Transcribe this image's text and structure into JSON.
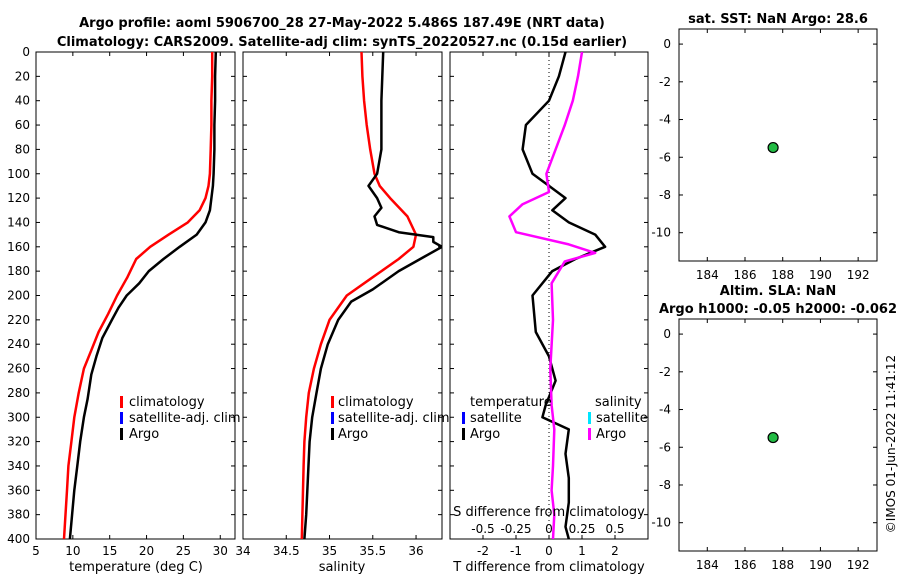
{
  "title": {
    "line1": "Argo profile: aoml 5906700_28 27-May-2022 5.486S 187.49E (NRT data)",
    "line2": "Climatology: CARS2009. Satellite-adj clim: synTS_20220527.nc (0.15d earlier)"
  },
  "watermark": "©IMOS 01-Jun-2022 11:41:12",
  "colors": {
    "climatology": "#ff0000",
    "satellite": "#0000ff",
    "satellite_s": "#00e5ff",
    "argo": "#000000",
    "argo_diff_s": "#ff00ff",
    "marker": "#22bb44"
  },
  "chart_data": [
    {
      "id": "temperature",
      "type": "line",
      "xlabel": "temperature (deg C)",
      "xlim": [
        5,
        32
      ],
      "xticks": [
        5,
        10,
        15,
        20,
        25,
        30
      ],
      "ylim": [
        0,
        400
      ],
      "yticks": [
        0,
        20,
        40,
        60,
        80,
        100,
        120,
        140,
        160,
        180,
        200,
        220,
        240,
        260,
        280,
        300,
        320,
        340,
        360,
        380,
        400
      ],
      "legend": [
        "climatology",
        "satellite-adj. clim",
        "Argo"
      ],
      "series": [
        {
          "name": "climatology",
          "color": "#ff0000",
          "x": [
            28.9,
            28.9,
            28.8,
            28.8,
            28.7,
            28.6,
            28.4,
            28.0,
            27.2,
            25.6,
            23.0,
            20.5,
            18.6,
            17.4,
            16.0,
            14.8,
            13.5,
            12.5,
            11.5,
            10.8,
            10.2,
            9.8,
            9.4,
            9.2,
            9.0,
            8.8
          ],
          "y": [
            0,
            20,
            40,
            60,
            80,
            100,
            110,
            120,
            130,
            140,
            150,
            160,
            170,
            185,
            200,
            215,
            230,
            245,
            260,
            280,
            300,
            320,
            340,
            360,
            380,
            400
          ]
        },
        {
          "name": "Argo",
          "color": "#000000",
          "x": [
            29.4,
            29.3,
            29.3,
            29.2,
            29.2,
            29.1,
            29.0,
            28.8,
            28.6,
            28.0,
            26.8,
            24.5,
            22.3,
            20.3,
            19.0,
            17.3,
            16.2,
            15.3,
            14.0,
            13.2,
            12.5,
            12.0,
            11.5,
            11.0,
            10.6,
            10.2,
            9.9,
            9.6
          ],
          "y": [
            0,
            20,
            40,
            60,
            80,
            100,
            110,
            120,
            130,
            140,
            150,
            160,
            170,
            180,
            190,
            200,
            210,
            220,
            235,
            250,
            265,
            285,
            300,
            320,
            340,
            360,
            380,
            400
          ]
        }
      ]
    },
    {
      "id": "salinity",
      "type": "line",
      "xlabel": "salinity",
      "xlim": [
        34,
        36.3
      ],
      "xticks": [
        34,
        34.5,
        35,
        35.5,
        36
      ],
      "xticklabels": [
        "34",
        "34.5",
        "35",
        "35.5",
        "36"
      ],
      "ylim": [
        0,
        400
      ],
      "legend": [
        "climatology",
        "satellite-adj. clim",
        "Argo"
      ],
      "series": [
        {
          "name": "climatology",
          "color": "#ff0000",
          "x": [
            35.37,
            35.38,
            35.4,
            35.43,
            35.47,
            35.52,
            35.58,
            35.7,
            35.9,
            36.0,
            35.97,
            35.8,
            35.5,
            35.2,
            35.0,
            34.9,
            34.82,
            34.76,
            34.73,
            34.71,
            34.7,
            34.69,
            34.68
          ],
          "y": [
            0,
            20,
            40,
            60,
            80,
            100,
            110,
            120,
            135,
            150,
            160,
            170,
            185,
            200,
            220,
            240,
            260,
            280,
            300,
            320,
            340,
            370,
            400
          ]
        },
        {
          "name": "Argo",
          "color": "#000000",
          "x": [
            35.62,
            35.61,
            35.6,
            35.6,
            35.6,
            35.55,
            35.45,
            35.55,
            35.6,
            35.52,
            35.55,
            35.8,
            36.2,
            36.2,
            36.3,
            36.1,
            35.8,
            35.5,
            35.25,
            35.1,
            34.98,
            34.9,
            34.85,
            34.8,
            34.77,
            34.75,
            34.73,
            34.71
          ],
          "y": [
            0,
            20,
            40,
            60,
            80,
            100,
            110,
            120,
            128,
            135,
            142,
            148,
            152,
            156,
            160,
            168,
            180,
            195,
            205,
            220,
            240,
            260,
            280,
            300,
            320,
            350,
            380,
            400
          ]
        }
      ]
    },
    {
      "id": "difference",
      "type": "line",
      "xlabel": "T difference from climatology",
      "xlim": [
        -3,
        3
      ],
      "xticks": [
        -2,
        -1,
        0,
        1,
        2
      ],
      "xticklabels": [
        "-2",
        "-1",
        "0",
        "1",
        "2"
      ],
      "top_axis_label": "S difference from climatology",
      "top_ticks": [
        -0.5,
        -0.25,
        0,
        0.25,
        0.5
      ],
      "top_ticklabels": [
        "-0.5",
        "-0.25",
        "0",
        "0.25",
        "0.5"
      ],
      "ylim": [
        0,
        400
      ],
      "legend_t_title": "temperature",
      "legend_s_title": "salinity",
      "legend_t": [
        "satellite",
        "Argo"
      ],
      "legend_s": [
        "satellite",
        "Argo"
      ],
      "series": [
        {
          "name": "T Argo",
          "color": "#000000",
          "x": [
            0.5,
            0.4,
            0.3,
            0.0,
            -0.7,
            -0.8,
            -0.5,
            0.0,
            0.5,
            0.1,
            0.6,
            1.4,
            1.7,
            0.8,
            0.1,
            -0.5,
            -0.4,
            0.0,
            0.2,
            -0.1,
            -0.2,
            0.6,
            0.5,
            0.6,
            0.6,
            0.5,
            0.6
          ],
          "y": [
            0,
            10,
            20,
            40,
            60,
            80,
            100,
            110,
            120,
            130,
            140,
            150,
            160,
            170,
            180,
            200,
            230,
            250,
            270,
            290,
            300,
            310,
            330,
            350,
            370,
            390,
            400
          ]
        },
        {
          "name": "S Argo",
          "color": "#ff00ff",
          "x": [
            0.25,
            0.22,
            0.18,
            0.12,
            0.05,
            -0.02,
            0.0,
            -0.2,
            -0.3,
            -0.25,
            0.15,
            0.35,
            0.12,
            0.02,
            0.03,
            0.01,
            0.02,
            0.04,
            0.03,
            0.02,
            0.04,
            0.03
          ],
          "y": [
            0,
            20,
            40,
            60,
            80,
            100,
            115,
            125,
            135,
            148,
            158,
            165,
            172,
            190,
            220,
            260,
            290,
            310,
            340,
            360,
            380,
            400
          ]
        }
      ]
    },
    {
      "id": "sst",
      "type": "scatter",
      "title": "sat. SST: NaN Argo: 28.6",
      "xlim": [
        182.5,
        193
      ],
      "xticks": [
        184,
        186,
        188,
        190,
        192
      ],
      "ylim": [
        -11.5,
        0.8
      ],
      "yticks": [
        0,
        -2,
        -4,
        -6,
        -8,
        -10
      ],
      "points": [
        {
          "x": 187.49,
          "y": -5.486
        }
      ]
    },
    {
      "id": "sla",
      "type": "scatter",
      "title_line1": "Altim. SLA: NaN",
      "title_line2": "Argo h1000: -0.05 h2000: -0.062",
      "xlim": [
        182.5,
        193
      ],
      "xticks": [
        184,
        186,
        188,
        190,
        192
      ],
      "ylim": [
        -11.5,
        0.8
      ],
      "yticks": [
        0,
        -2,
        -4,
        -6,
        -8,
        -10
      ],
      "points": [
        {
          "x": 187.49,
          "y": -5.486
        }
      ]
    }
  ]
}
